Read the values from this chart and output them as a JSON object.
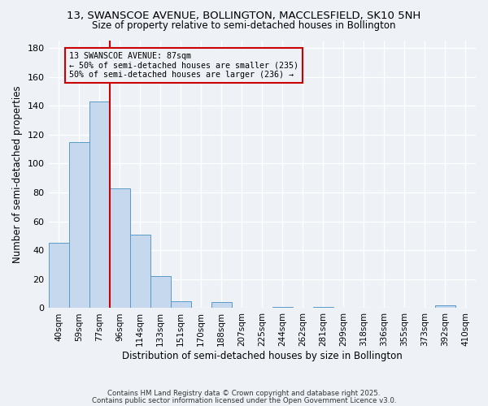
{
  "title": "13, SWANSCOE AVENUE, BOLLINGTON, MACCLESFIELD, SK10 5NH",
  "subtitle": "Size of property relative to semi-detached houses in Bollington",
  "xlabel": "Distribution of semi-detached houses by size in Bollington",
  "ylabel": "Number of semi-detached properties",
  "categories": [
    "40sqm",
    "59sqm",
    "77sqm",
    "96sqm",
    "114sqm",
    "133sqm",
    "151sqm",
    "170sqm",
    "188sqm",
    "207sqm",
    "225sqm",
    "244sqm",
    "262sqm",
    "281sqm",
    "299sqm",
    "318sqm",
    "336sqm",
    "355sqm",
    "373sqm",
    "392sqm",
    "410sqm"
  ],
  "values": [
    45,
    115,
    143,
    83,
    51,
    22,
    5,
    0,
    4,
    0,
    0,
    1,
    0,
    1,
    0,
    0,
    0,
    0,
    0,
    2,
    0
  ],
  "bar_color": "#c5d8ed",
  "bar_edge_color": "#5a9ac8",
  "vline_x_index": 2.5,
  "vline_color": "#cc0000",
  "annotation_title": "13 SWANSCOE AVENUE: 87sqm",
  "annotation_line1": "← 50% of semi-detached houses are smaller (235)",
  "annotation_line2": "50% of semi-detached houses are larger (236) →",
  "annotation_box_color": "#cc0000",
  "ylim": [
    0,
    185
  ],
  "yticks": [
    0,
    20,
    40,
    60,
    80,
    100,
    120,
    140,
    160,
    180
  ],
  "footer1": "Contains HM Land Registry data © Crown copyright and database right 2025.",
  "footer2": "Contains public sector information licensed under the Open Government Licence v3.0.",
  "bg_color": "#eef2f7"
}
